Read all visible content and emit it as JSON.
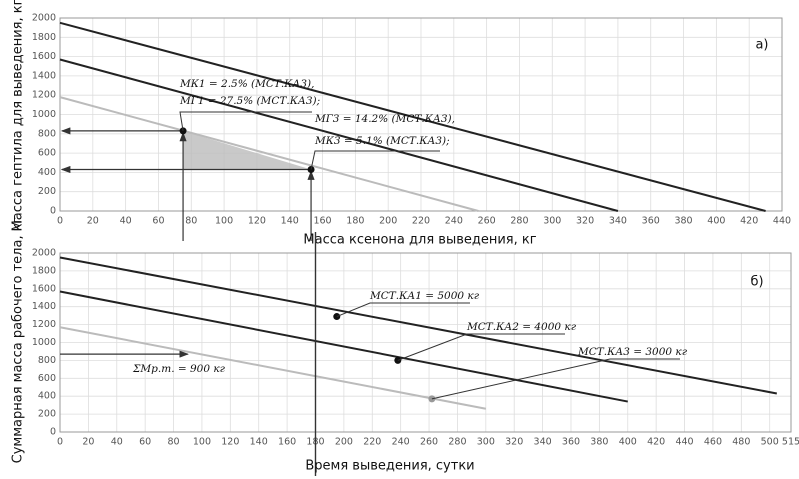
{
  "chart_data": [
    {
      "type": "line",
      "panel_label": "а)",
      "x_label": "Масса ксенона для выведения, кг",
      "y_label": "Масса гептила для выведения, кг",
      "xlim": [
        0,
        440
      ],
      "xticks": [
        0,
        20,
        40,
        60,
        80,
        100,
        120,
        140,
        160,
        180,
        200,
        220,
        240,
        260,
        280,
        300,
        320,
        340,
        360,
        380,
        400,
        420,
        440
      ],
      "ylim": [
        0,
        2000
      ],
      "yticks": [
        0,
        200,
        400,
        600,
        800,
        1000,
        1200,
        1400,
        1600,
        1800,
        2000
      ],
      "grid": true,
      "series": [
        {
          "color": "#222222",
          "x": [
            0,
            430
          ],
          "values": [
            1950,
            0
          ]
        },
        {
          "color": "#222222",
          "x": [
            0,
            340
          ],
          "values": [
            1570,
            0
          ]
        },
        {
          "color": "#bbbbbb",
          "x": [
            0,
            255
          ],
          "values": [
            1180,
            0
          ]
        }
      ],
      "markers": {
        "x": [
          75,
          153
        ],
        "values": [
          830,
          430
        ]
      },
      "annotations": [
        "MК1 = 2.5% (MСТ.КА3),",
        "MГ1 = 27.5% (MСТ.КА3);",
        "MГ3 = 14.2% (MСТ.КА3),",
        "MК3 = 5.1% (MСТ.КА3);"
      ]
    },
    {
      "type": "line",
      "panel_label": "б)",
      "x_label": "Время выведения, сутки",
      "y_label": "Суммарная масса рабочего тела, кг",
      "xlim": [
        0,
        515
      ],
      "xticks": [
        0,
        20,
        40,
        60,
        80,
        100,
        120,
        140,
        160,
        180,
        200,
        220,
        240,
        260,
        280,
        300,
        320,
        340,
        360,
        380,
        400,
        420,
        440,
        460,
        480,
        500,
        515
      ],
      "ylim": [
        0,
        2000
      ],
      "yticks": [
        0,
        200,
        400,
        600,
        800,
        1000,
        1200,
        1400,
        1600,
        1800,
        2000
      ],
      "grid": true,
      "series": [
        {
          "color": "#222222",
          "x": [
            0,
            505
          ],
          "values": [
            1950,
            430
          ]
        },
        {
          "color": "#222222",
          "x": [
            0,
            400
          ],
          "values": [
            1570,
            340
          ]
        },
        {
          "color": "#bbbbbb",
          "x": [
            0,
            300
          ],
          "values": [
            1170,
            260
          ]
        }
      ],
      "markers": {
        "x": [
          195,
          238,
          262
        ],
        "values": [
          1290,
          800,
          370
        ]
      },
      "guide_x": 180,
      "guide_y": 870,
      "guide_y_end_x": 90,
      "annotations": [
        "MСТ.КА1 = 5000 кг",
        "MСТ.КА2 = 4000 кг",
        "MСТ.КА3 = 3000 кг",
        "ΣMр.т. = 900 кг"
      ]
    }
  ]
}
